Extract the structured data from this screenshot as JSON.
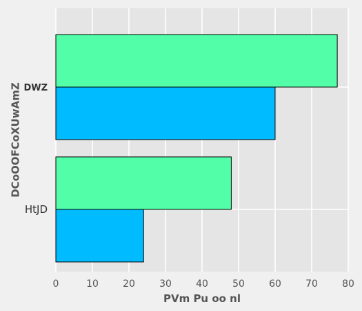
{
  "chart_data": {
    "type": "bar",
    "orientation": "horizontal",
    "title": "",
    "xlabel": "PVm Pu oo nl",
    "ylabel": "DCoOOFCoXUwAmZ",
    "categories": [
      "DWZ",
      "HtJD"
    ],
    "category_label_bold": [
      true,
      false
    ],
    "series": [
      {
        "color": "#52ffa8",
        "values": [
          77,
          48
        ]
      },
      {
        "color": "#00bbff",
        "values": [
          60,
          24
        ]
      }
    ],
    "xlim": [
      0,
      80
    ],
    "xticks": [
      0,
      10,
      20,
      30,
      40,
      50,
      60,
      70,
      80
    ],
    "grid": true,
    "legend": "none"
  },
  "colors": {
    "page_background": "#f0f0f0",
    "plot_background": "#e5e5e5",
    "grid": "#ffffff",
    "bar_edge": "#000000"
  }
}
